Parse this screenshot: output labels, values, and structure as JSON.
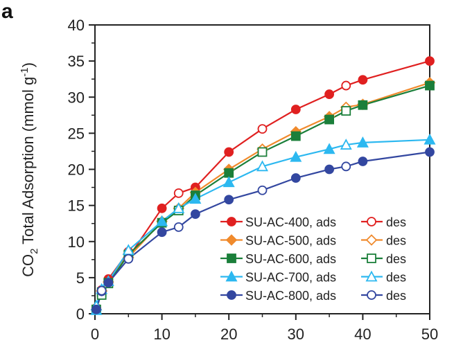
{
  "panel_label": "a",
  "chart_data": {
    "type": "line",
    "title": "",
    "xlabel": "",
    "ylabel_parts": {
      "pre": "CO",
      "sub": "2",
      "mid": " Total Adsorption (mmol g",
      "sup": "-1",
      "post": ")"
    },
    "xlim": [
      0,
      50
    ],
    "ylim": [
      0,
      40
    ],
    "xticks": [
      "0",
      "10",
      "20",
      "30",
      "40",
      "50"
    ],
    "yticks": [
      "0",
      "5",
      "10",
      "15",
      "20",
      "25",
      "30",
      "35",
      "40"
    ],
    "legend_position": "bottom-right",
    "ads_suffix": ", ads",
    "des_label": "des",
    "series": [
      {
        "name": "SU-AC-400",
        "color": "#e02020",
        "marker": "circle",
        "ads": {
          "x": [
            0.2,
            1,
            2,
            5,
            10,
            15,
            20,
            30,
            35,
            40,
            50
          ],
          "y": [
            0.8,
            3.2,
            4.8,
            8.6,
            14.6,
            17.5,
            22.4,
            28.3,
            30.4,
            32.4,
            35.0
          ]
        },
        "des": {
          "x": [
            1,
            5,
            12.5,
            25,
            37.5
          ],
          "y": [
            3.3,
            7.8,
            16.7,
            25.6,
            31.6
          ]
        }
      },
      {
        "name": "SU-AC-500",
        "color": "#f08a2c",
        "marker": "diamond",
        "ads": {
          "x": [
            0.2,
            1,
            2,
            5,
            10,
            15,
            20,
            30,
            35,
            40,
            50
          ],
          "y": [
            0.6,
            3.1,
            4.4,
            8.3,
            12.8,
            16.8,
            20.0,
            25.2,
            27.3,
            29.0,
            32.0
          ]
        },
        "des": {
          "x": [
            1,
            5,
            12.5,
            25,
            37.5
          ],
          "y": [
            3.2,
            7.8,
            14.6,
            22.8,
            28.6
          ]
        }
      },
      {
        "name": "SU-AC-600",
        "color": "#1b7f3a",
        "marker": "square",
        "ads": {
          "x": [
            0.2,
            1,
            2,
            5,
            10,
            15,
            20,
            30,
            35,
            40,
            50
          ],
          "y": [
            0.6,
            3.0,
            4.3,
            8.2,
            12.6,
            16.4,
            19.5,
            24.6,
            26.9,
            28.9,
            31.6
          ]
        },
        "des": {
          "x": [
            1,
            2,
            12.5,
            25,
            37.5
          ],
          "y": [
            2.6,
            4.2,
            14.3,
            22.4,
            28.1
          ]
        }
      },
      {
        "name": "SU-AC-700",
        "color": "#2cb8f0",
        "marker": "triangle",
        "ads": {
          "x": [
            0.2,
            1,
            2,
            5,
            10,
            15,
            20,
            30,
            35,
            40,
            50
          ],
          "y": [
            0.5,
            3.4,
            4.5,
            8.8,
            12.8,
            15.9,
            18.2,
            21.7,
            22.8,
            23.7,
            24.1
          ]
        },
        "des": {
          "x": [
            0.2,
            5,
            12.5,
            25,
            37.5
          ],
          "y": [
            1.1,
            8.8,
            14.6,
            20.4,
            23.4
          ]
        }
      },
      {
        "name": "SU-AC-800",
        "color": "#3347a0",
        "marker": "circle",
        "ads": {
          "x": [
            0.2,
            1,
            2,
            5,
            10,
            15,
            20,
            30,
            35,
            40,
            50
          ],
          "y": [
            0.6,
            3.1,
            4.3,
            7.6,
            11.3,
            13.8,
            15.8,
            18.8,
            20.0,
            21.1,
            22.4
          ]
        },
        "des": {
          "x": [
            1,
            5,
            12.5,
            25,
            37.5
          ],
          "y": [
            3.2,
            7.6,
            12.0,
            17.1,
            20.4
          ]
        }
      }
    ]
  }
}
